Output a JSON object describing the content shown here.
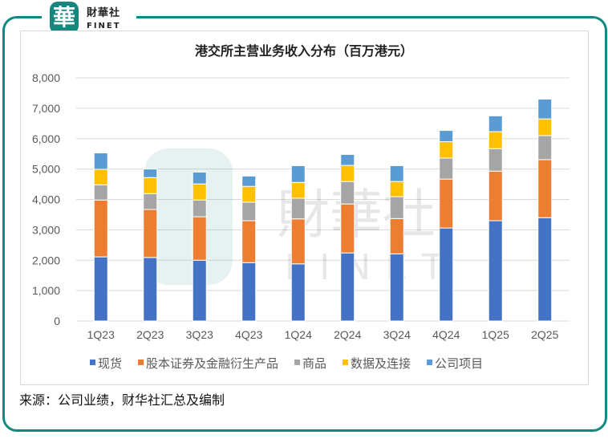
{
  "brand": {
    "logo_glyph": "華",
    "name_cn": "財華社",
    "name_en": "FINET",
    "border_color": "#0f8a80"
  },
  "source": "来源：公司业绩，财华社汇总及编制",
  "chart_data": {
    "type": "bar",
    "stacked": true,
    "title": "港交所主营业务收入分布（百万港元）",
    "categories": [
      "1Q23",
      "2Q23",
      "3Q23",
      "4Q23",
      "1Q24",
      "2Q24",
      "3Q24",
      "4Q24",
      "1Q25",
      "2Q25"
    ],
    "series": [
      {
        "name": "现货",
        "color": "#4472c4",
        "values": [
          2110,
          2090,
          2000,
          1920,
          1880,
          2240,
          2210,
          3060,
          3300,
          3400
        ]
      },
      {
        "name": "股本证券及金融衍生产品",
        "color": "#ed7d31",
        "values": [
          1870,
          1580,
          1430,
          1380,
          1480,
          1610,
          1160,
          1610,
          1630,
          1910
        ]
      },
      {
        "name": "商品",
        "color": "#a5a5a5",
        "values": [
          500,
          520,
          550,
          610,
          680,
          740,
          720,
          690,
          740,
          790
        ]
      },
      {
        "name": "数据及连接",
        "color": "#ffc000",
        "values": [
          510,
          530,
          530,
          520,
          520,
          530,
          500,
          540,
          560,
          550
        ]
      },
      {
        "name": "公司项目",
        "color": "#5b9bd5",
        "values": [
          540,
          280,
          390,
          340,
          550,
          360,
          520,
          370,
          520,
          650
        ]
      }
    ],
    "ylim": [
      0,
      8000
    ],
    "yticks": [
      "0",
      "1,000",
      "2,000",
      "3,000",
      "4,000",
      "5,000",
      "6,000",
      "7,000",
      "8,000"
    ],
    "grid": true,
    "legend": "bottom",
    "watermark": "財華社 FINET"
  }
}
